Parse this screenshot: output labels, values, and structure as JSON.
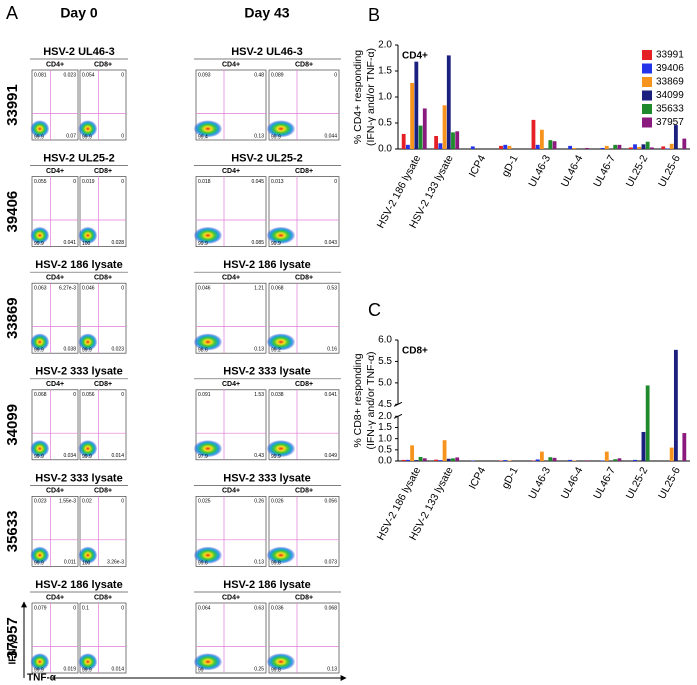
{
  "panel_a": {
    "letter": "A",
    "day_labels": [
      "Day 0",
      "Day 43"
    ],
    "subset_labels": [
      "CD4+",
      "CD8+"
    ],
    "y_axis_label": "IFN-γ",
    "x_axis_label": "TNF-α",
    "rows": [
      {
        "donor": "33991",
        "color": "#e41f26",
        "titles": [
          "HSV-2 UL46-3",
          "HSV-2 UL46-3"
        ],
        "plots": [
          [
            "0.081",
            "0.023",
            "0.07",
            "99.9"
          ],
          [
            "0.054",
            "0",
            "0",
            "99.9"
          ],
          [
            "0.093",
            "0.48",
            "0.13",
            "99.4"
          ],
          [
            "0.089",
            "0",
            "0.044",
            "99.9"
          ]
        ]
      },
      {
        "donor": "39406",
        "color": "#2233e8",
        "titles": [
          "HSV-2 UL25-2",
          "HSV-2 UL25-2"
        ],
        "plots": [
          [
            "0.055",
            "0",
            "0.041",
            "99.9"
          ],
          [
            "0.019",
            "0",
            "0.028",
            "100"
          ],
          [
            "0.018",
            "0.045",
            "0.085",
            "99.9"
          ],
          [
            "0.013",
            "0",
            "0.043",
            "99.9"
          ]
        ]
      },
      {
        "donor": "33869",
        "color": "#f7941d",
        "titles": [
          "HSV-2 186 lysate",
          "HSV-2 186 lysate"
        ],
        "plots": [
          [
            "0.063",
            "6.27e-3",
            "0.038",
            "99.9"
          ],
          [
            "0.046",
            "0",
            "0.023",
            "99.9"
          ],
          [
            "0.046",
            "1.21",
            "0.13",
            "98.6"
          ],
          [
            "0.068",
            "0.53",
            "0.16",
            "99.2"
          ]
        ]
      },
      {
        "donor": "34099",
        "color": "#1b1f7e",
        "titles": [
          "HSV-2 333 lysate",
          "HSV-2 333 lysate"
        ],
        "plots": [
          [
            "0.068",
            "0",
            "0.034",
            "99.9"
          ],
          [
            "0.056",
            "0",
            "0.014",
            "99.9"
          ],
          [
            "0.091",
            "1.53",
            "0.43",
            "97.9"
          ],
          [
            "0.038",
            "0.041",
            "0.049",
            "99.9"
          ]
        ]
      },
      {
        "donor": "35633",
        "color": "#1f8a2b",
        "titles": [
          "HSV-2 333 lysate",
          "HSV-2 333 lysate"
        ],
        "plots": [
          [
            "0.023",
            "1.55e-3",
            "0.011",
            "99.9"
          ],
          [
            "0.02",
            "0",
            "3.26e-3",
            "100"
          ],
          [
            "0.025",
            "0.26",
            "0.13",
            "99.6"
          ],
          [
            "0.026",
            "0.056",
            "0.073",
            "99.8"
          ]
        ]
      },
      {
        "donor": "37957",
        "color": "#8b1a7e",
        "titles": [
          "HSV-2 186 lysate",
          "HSV-2 186 lysate"
        ],
        "plots": [
          [
            "0.079",
            "0",
            "0.019",
            "99.9"
          ],
          [
            "0.1",
            "0",
            "0.014",
            "99.9"
          ],
          [
            "0.064",
            "0.63",
            "0.25",
            "99"
          ],
          [
            "0.036",
            "0.068",
            "0.13",
            "99.8"
          ]
        ]
      }
    ]
  },
  "chart_data": [
    {
      "type": "bar",
      "panel_label": "B",
      "annotation": "CD4+",
      "ylabel": [
        "% CD4+ responding",
        "(IFN-γ and/or TNF-α)"
      ],
      "categories": [
        "HSV-2 186 lysate",
        "HSV-2 133 lysate",
        "ICP4",
        "gD-1",
        "UL46-3",
        "UL46-4",
        "UL46-7",
        "UL25-2",
        "UL25-6"
      ],
      "series": [
        {
          "name": "33991",
          "color": "#e41f26",
          "values": [
            0.29,
            0.25,
            0,
            0.06,
            0.56,
            0,
            0,
            0.03,
            0.05
          ]
        },
        {
          "name": "39406",
          "color": "#2233e8",
          "values": [
            0.08,
            0.11,
            0.05,
            0.08,
            0.08,
            0.06,
            0.02,
            0.09,
            0.01
          ]
        },
        {
          "name": "33869",
          "color": "#f7941d",
          "values": [
            1.27,
            0.84,
            0,
            0.06,
            0.37,
            0.02,
            0.06,
            0.04,
            0.1
          ]
        },
        {
          "name": "34099",
          "color": "#1b1f7e",
          "values": [
            1.68,
            1.8,
            0,
            0,
            0,
            0,
            0,
            0.09,
            0.46
          ]
        },
        {
          "name": "35633",
          "color": "#1f8a2b",
          "values": [
            0.45,
            0.32,
            0,
            0,
            0.17,
            0,
            0.08,
            0.14,
            0
          ]
        },
        {
          "name": "37957",
          "color": "#8b1a7e",
          "values": [
            0.78,
            0.34,
            0,
            0,
            0.15,
            0.02,
            0.08,
            0.03,
            0.2
          ]
        }
      ],
      "ylim": [
        0,
        2.0
      ],
      "yticks": [
        {
          "value": 0,
          "label": "0.0"
        },
        0.5,
        {
          "value": 1,
          "label": "1.0"
        },
        1.5,
        {
          "value": 2,
          "label": "2.0"
        }
      ],
      "legend": "upper right"
    },
    {
      "type": "bar",
      "panel_label": "C",
      "annotation": "CD8+",
      "ylabel": [
        "% CD8+ responding",
        "(IFN-γ and/or TNF-α)"
      ],
      "categories": [
        "HSV-2 186 lysate",
        "HSV-2 133 lysate",
        "ICP4",
        "gD-1",
        "UL46-3",
        "UL46-4",
        "UL46-7",
        "UL25-2",
        "UL25-6"
      ],
      "series": [
        {
          "color": "#e41f26",
          "values": [
            0.05,
            0.06,
            0,
            0.02,
            0.02,
            0,
            0,
            0,
            0
          ]
        },
        {
          "color": "#2233e8",
          "values": [
            0.05,
            0.04,
            0.02,
            0.04,
            0.07,
            0.05,
            0.02,
            0.05,
            0
          ]
        },
        {
          "color": "#f7941d",
          "values": [
            0.7,
            0.93,
            0,
            0.02,
            0.42,
            0.02,
            0.42,
            0,
            0.6
          ]
        },
        {
          "color": "#1b1f7e",
          "values": [
            0.04,
            0.1,
            0,
            0,
            0,
            0,
            0,
            1.3,
            5.77
          ]
        },
        {
          "color": "#1f8a2b",
          "values": [
            0.18,
            0.12,
            0,
            0,
            0.17,
            0,
            0.08,
            4.94,
            0
          ]
        },
        {
          "color": "#8b1a7e",
          "values": [
            0.12,
            0.16,
            0,
            0,
            0.14,
            0.03,
            0.12,
            0,
            1.25
          ]
        }
      ],
      "ylim": [
        0,
        6.0
      ],
      "ybreak": [
        2.0,
        4.5
      ],
      "yticks": [
        {
          "value": 0,
          "label": "0.0"
        },
        0.5,
        {
          "value": 1,
          "label": "1.0"
        },
        1.5,
        {
          "value": 2,
          "label": "2.0"
        },
        4.5,
        {
          "value": 5,
          "label": "5.0"
        },
        5.5,
        {
          "value": 6,
          "label": "6.0"
        }
      ],
      "legend": false
    }
  ]
}
